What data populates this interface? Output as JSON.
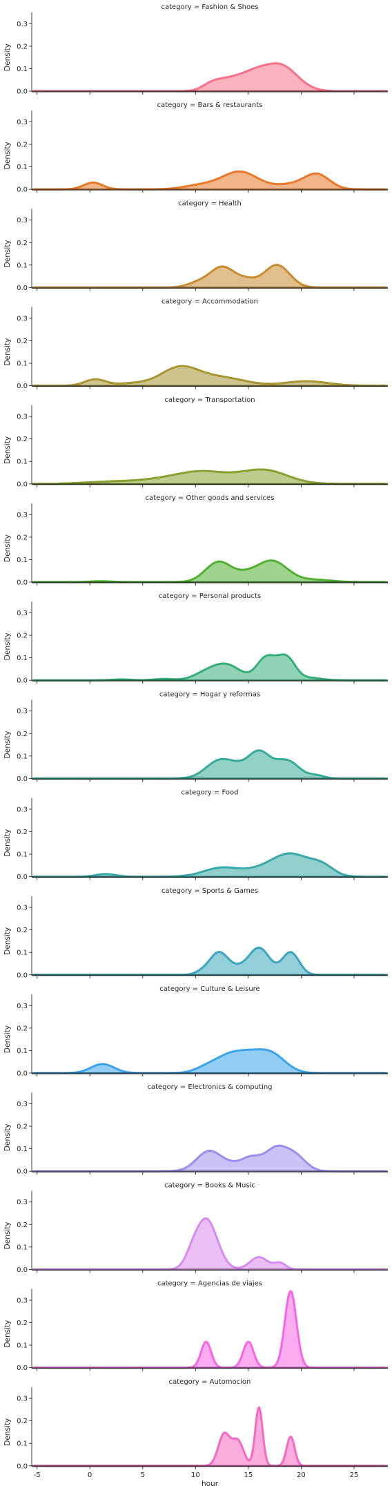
{
  "chart_data": {
    "type": "area",
    "facet_title_prefix": "category = ",
    "xlabel": "hour",
    "ylabel": "Density",
    "xlim": [
      -5.5,
      28.2
    ],
    "ylim": [
      0,
      0.35
    ],
    "xticks": [
      -5,
      0,
      5,
      10,
      15,
      20,
      25
    ],
    "yticks": [
      0.0,
      0.1,
      0.2,
      0.3
    ],
    "ytick_labels": [
      "0.0",
      "0.1",
      "0.2",
      "0.3"
    ],
    "grid": false,
    "x_range_per_panel": [
      -5.3,
      28.0
    ],
    "panels": [
      {
        "title": "Fashion & Shoes",
        "color": "#f77189",
        "kde": {
          "range": [
            -3,
            23
          ],
          "peaks": [
            [
              11.5,
              0.025,
              0.9
            ],
            [
              13.3,
              0.05,
              1.3
            ],
            [
              15.5,
              0.055,
              1.2
            ],
            [
              18.0,
              0.115,
              1.6
            ]
          ]
        }
      },
      {
        "title": "Bars & restaurants",
        "color": "#e8782a",
        "kde": {
          "range": [
            -4,
            26
          ],
          "peaks": [
            [
              0.3,
              0.03,
              0.9
            ],
            [
              10.5,
              0.018,
              1.6
            ],
            [
              14.2,
              0.078,
              1.7
            ],
            [
              21.5,
              0.065,
              1.2
            ],
            [
              19.0,
              0.02,
              1.5
            ]
          ]
        }
      },
      {
        "title": "Health",
        "color": "#c98b2f",
        "kde": {
          "range": [
            -3,
            24
          ],
          "peaks": [
            [
              12.5,
              0.09,
              1.15
            ],
            [
              17.7,
              0.1,
              1.2
            ],
            [
              14.8,
              0.03,
              1.0
            ],
            [
              10.2,
              0.02,
              1.0
            ]
          ]
        }
      },
      {
        "title": "Accommodation",
        "color": "#a69531",
        "kde": {
          "range": [
            -3.5,
            27
          ],
          "peaks": [
            [
              0.5,
              0.028,
              1.0
            ],
            [
              8.5,
              0.08,
              1.8
            ],
            [
              12.5,
              0.035,
              2.2
            ],
            [
              20.5,
              0.02,
              2.0
            ],
            [
              4.0,
              0.01,
              1.5
            ]
          ]
        }
      },
      {
        "title": "Transportation",
        "color": "#87a030",
        "kde": {
          "range": [
            -3,
            25
          ],
          "peaks": [
            [
              10.5,
              0.055,
              2.6
            ],
            [
              16.5,
              0.06,
              2.2
            ],
            [
              2.0,
              0.01,
              2.5
            ],
            [
              6.0,
              0.01,
              2.0
            ]
          ]
        }
      },
      {
        "title": "Other goods and services",
        "color": "#50b131",
        "kde": {
          "range": [
            -4,
            26
          ],
          "peaks": [
            [
              12.2,
              0.09,
              1.25
            ],
            [
              17.2,
              0.095,
              1.5
            ],
            [
              21.5,
              0.01,
              1.5
            ],
            [
              14.7,
              0.02,
              1.0
            ],
            [
              1.0,
              0.004,
              1.0
            ]
          ]
        }
      },
      {
        "title": "Personal products",
        "color": "#34ae7a",
        "kde": {
          "range": [
            -4,
            26
          ],
          "peaks": [
            [
              13.0,
              0.065,
              1.3
            ],
            [
              16.7,
              0.1,
              0.9
            ],
            [
              18.6,
              0.1,
              0.85
            ],
            [
              11.0,
              0.03,
              1.2
            ],
            [
              21.0,
              0.01,
              1.0
            ],
            [
              3.0,
              0.004,
              0.8
            ],
            [
              7.0,
              0.006,
              0.9
            ]
          ]
        }
      },
      {
        "title": "Hogar y reformas",
        "color": "#36ab97",
        "kde": {
          "range": [
            -3,
            25
          ],
          "peaks": [
            [
              12.3,
              0.08,
              1.3
            ],
            [
              16.0,
              0.11,
              1.0
            ],
            [
              18.6,
              0.08,
              1.2
            ],
            [
              21.5,
              0.012,
              0.7
            ],
            [
              14.2,
              0.03,
              1.0
            ]
          ]
        }
      },
      {
        "title": "Food",
        "color": "#38a8a8",
        "kde": {
          "range": [
            -3,
            26
          ],
          "peaks": [
            [
              1.5,
              0.012,
              0.9
            ],
            [
              12.5,
              0.04,
              1.7
            ],
            [
              19.0,
              0.1,
              1.8
            ],
            [
              22.0,
              0.04,
              1.1
            ],
            [
              16.0,
              0.02,
              1.5
            ]
          ]
        }
      },
      {
        "title": "Sports & Games",
        "color": "#3aa6bd",
        "kde": {
          "range": [
            -5,
            26
          ],
          "peaks": [
            [
              12.2,
              0.1,
              0.9
            ],
            [
              16.0,
              0.12,
              1.0
            ],
            [
              19.0,
              0.1,
              0.8
            ],
            [
              14.0,
              0.02,
              0.8
            ],
            [
              10.5,
              0.01,
              0.6
            ]
          ]
        }
      },
      {
        "title": "Culture & Leisure",
        "color": "#3ba3ec",
        "kde": {
          "range": [
            -3,
            26
          ],
          "peaks": [
            [
              1.2,
              0.04,
              1.1
            ],
            [
              13.5,
              0.085,
              1.5
            ],
            [
              17.0,
              0.09,
              1.4
            ],
            [
              11.0,
              0.02,
              1.1
            ],
            [
              15.2,
              0.02,
              1.0
            ]
          ]
        }
      },
      {
        "title": "Electronics & computing",
        "color": "#9b8fed",
        "kde": {
          "range": [
            -3,
            26
          ],
          "peaks": [
            [
              11.3,
              0.09,
              1.2
            ],
            [
              15.2,
              0.055,
              0.9
            ],
            [
              17.6,
              0.1,
              1.1
            ],
            [
              19.5,
              0.06,
              1.0
            ],
            [
              13.5,
              0.02,
              0.9
            ]
          ]
        }
      },
      {
        "title": "Books & Music",
        "color": "#d88aef",
        "kde": {
          "range": [
            -3,
            26
          ],
          "peaks": [
            [
              11.0,
              0.225,
              1.05
            ],
            [
              9.6,
              0.03,
              0.6
            ],
            [
              16.0,
              0.055,
              0.85
            ],
            [
              18.0,
              0.028,
              0.55
            ]
          ]
        }
      },
      {
        "title": "Agencias de viajes",
        "color": "#f766e2",
        "kde": {
          "range": [
            -3,
            26
          ],
          "peaks": [
            [
              11.0,
              0.115,
              0.48
            ],
            [
              15.0,
              0.115,
              0.5
            ],
            [
              19.0,
              0.34,
              0.55
            ]
          ]
        }
      },
      {
        "title": "Automocion",
        "color": "#f669c0",
        "kde": {
          "range": [
            -3,
            26
          ],
          "peaks": [
            [
              12.7,
              0.14,
              0.55
            ],
            [
              14.0,
              0.11,
              0.55
            ],
            [
              16.0,
              0.26,
              0.35
            ],
            [
              19.0,
              0.13,
              0.38
            ]
          ]
        }
      }
    ]
  }
}
